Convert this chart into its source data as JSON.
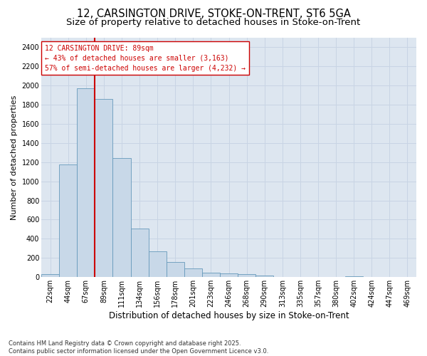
{
  "title_line1": "12, CARSINGTON DRIVE, STOKE-ON-TRENT, ST6 5GA",
  "title_line2": "Size of property relative to detached houses in Stoke-on-Trent",
  "xlabel": "Distribution of detached houses by size in Stoke-on-Trent",
  "ylabel": "Number of detached properties",
  "categories": [
    "22sqm",
    "44sqm",
    "67sqm",
    "89sqm",
    "111sqm",
    "134sqm",
    "156sqm",
    "178sqm",
    "201sqm",
    "223sqm",
    "246sqm",
    "268sqm",
    "290sqm",
    "313sqm",
    "335sqm",
    "357sqm",
    "380sqm",
    "402sqm",
    "424sqm",
    "447sqm",
    "469sqm"
  ],
  "values": [
    30,
    1175,
    1970,
    1855,
    1240,
    510,
    270,
    155,
    90,
    50,
    40,
    30,
    20,
    0,
    0,
    0,
    0,
    10,
    0,
    0,
    0
  ],
  "bar_color": "#c8d8e8",
  "bar_edge_color": "#6699bb",
  "vline_x_index": 3,
  "vline_color": "#cc0000",
  "annotation_title": "12 CARSINGTON DRIVE: 89sqm",
  "annotation_line1": "← 43% of detached houses are smaller (3,163)",
  "annotation_line2": "57% of semi-detached houses are larger (4,232) →",
  "annotation_box_color": "#cc0000",
  "ylim": [
    0,
    2500
  ],
  "yticks": [
    0,
    200,
    400,
    600,
    800,
    1000,
    1200,
    1400,
    1600,
    1800,
    2000,
    2200,
    2400
  ],
  "grid_color": "#c8d4e4",
  "bg_color": "#dde6f0",
  "footer_line1": "Contains HM Land Registry data © Crown copyright and database right 2025.",
  "footer_line2": "Contains public sector information licensed under the Open Government Licence v3.0.",
  "title_fontsize": 10.5,
  "subtitle_fontsize": 9.5,
  "axis_label_fontsize": 8,
  "tick_fontsize": 7,
  "annotation_fontsize": 7,
  "footer_fontsize": 6
}
